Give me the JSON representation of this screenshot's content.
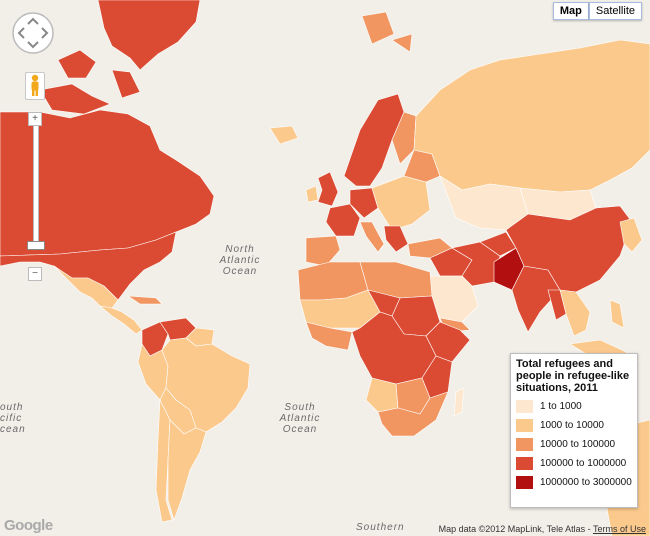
{
  "map_type": {
    "map_label": "Map",
    "satellite_label": "Satellite",
    "selected": "Map"
  },
  "ocean_labels": {
    "north_atlantic": [
      "North",
      "Atlantic",
      "Ocean"
    ],
    "south_atlantic": [
      "South",
      "Atlantic",
      "Ocean"
    ],
    "south_pacific_edge": [
      "outh",
      "cific",
      "cean"
    ],
    "southern": "Southern"
  },
  "legend": {
    "title": "Total refugees and people in refugee-like situations, 2011",
    "items": [
      {
        "label": "1 to 1000",
        "color": "#fde7cf"
      },
      {
        "label": "1000 to 10000",
        "color": "#fbc98c"
      },
      {
        "label": "10000 to 100000",
        "color": "#f19561"
      },
      {
        "label": "100000 to 1000000",
        "color": "#db4b33"
      },
      {
        "label": "1000000 to 3000000",
        "color": "#b21010"
      }
    ]
  },
  "colors": {
    "land_no_data": "#eaeaea",
    "ocean": "#f2efe9",
    "border": "#ffffff"
  },
  "logo": "Google",
  "attribution": {
    "text": "Map data ©2012 MapLink, Tele Atlas - ",
    "terms": "Terms of Use"
  }
}
